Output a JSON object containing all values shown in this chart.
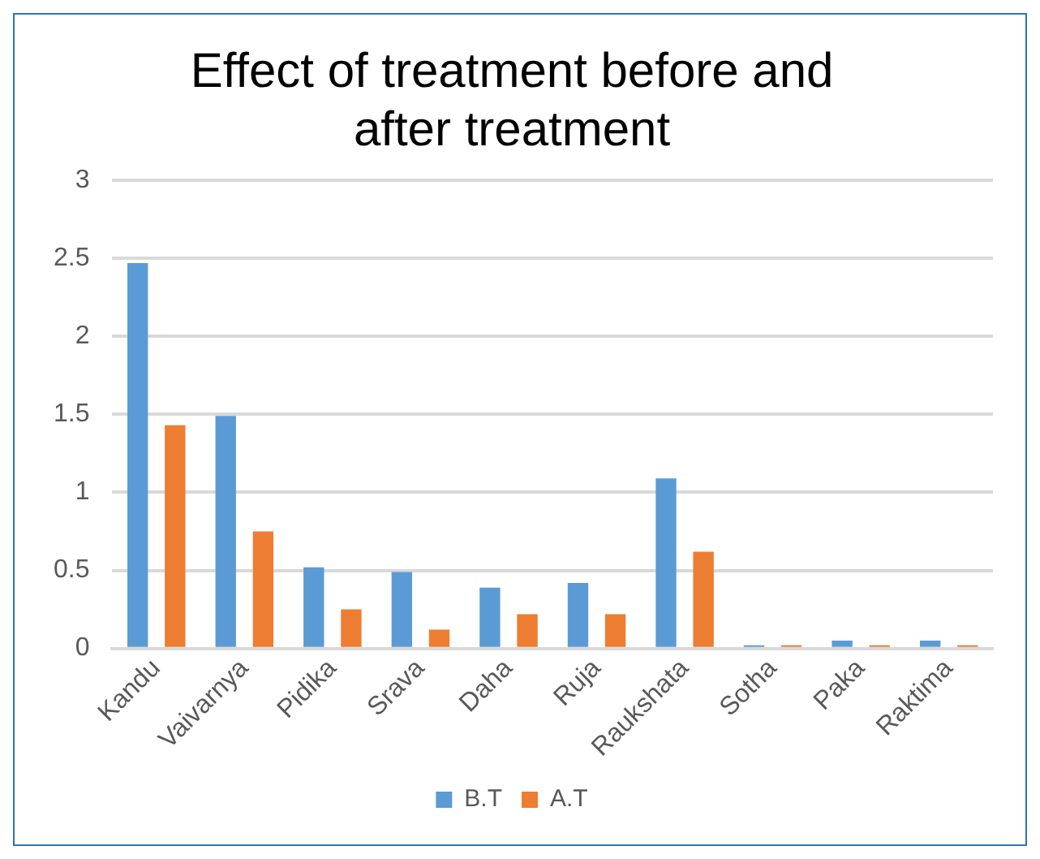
{
  "chart_data": {
    "type": "bar",
    "title": "Effect of treatment before and after treatment",
    "categories": [
      "Kandu",
      "Vaivarnya",
      "Pidika",
      "Srava",
      "Daha",
      "Ruja",
      "Raukshata",
      "Sotha",
      "Paka",
      "Raktima"
    ],
    "series": [
      {
        "name": "B.T",
        "color": "#5b9bd5",
        "values": [
          2.47,
          1.49,
          0.52,
          0.49,
          0.39,
          0.42,
          1.09,
          0.02,
          0.05,
          0.05
        ]
      },
      {
        "name": "A.T",
        "color": "#ed7d31",
        "values": [
          1.43,
          0.75,
          0.25,
          0.12,
          0.22,
          0.22,
          0.62,
          0.02,
          0.02,
          0.02
        ]
      }
    ],
    "ylim": [
      0,
      3
    ],
    "yticks": [
      0,
      0.5,
      1,
      1.5,
      2,
      2.5,
      3
    ],
    "grid": "y",
    "legend": "bottom"
  }
}
